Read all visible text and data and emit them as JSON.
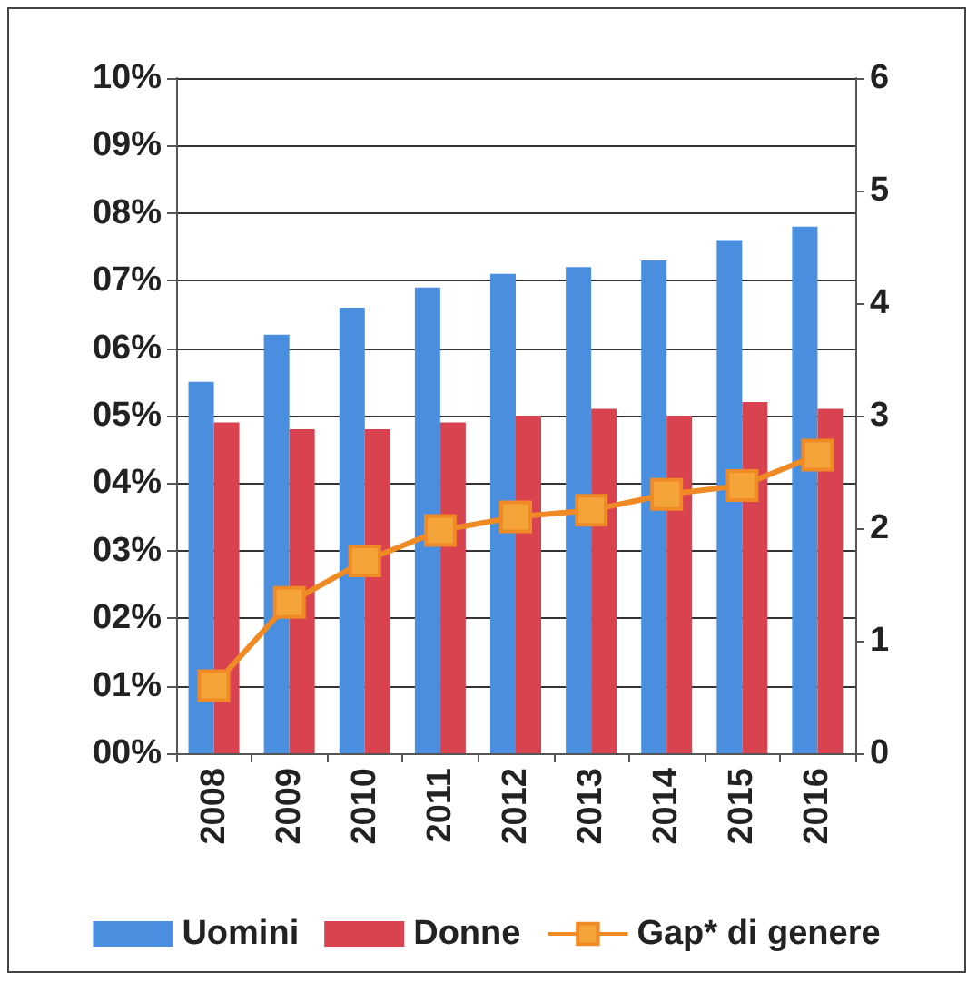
{
  "chart_data": {
    "type": "bar",
    "categories": [
      "2008",
      "2009",
      "2010",
      "2011",
      "2012",
      "2013",
      "2014",
      "2015",
      "2016"
    ],
    "series": [
      {
        "name": "Uomini",
        "color": "#4a8ee0",
        "values": [
          5.5,
          6.2,
          6.6,
          6.9,
          7.1,
          7.2,
          7.3,
          7.6,
          7.8
        ]
      },
      {
        "name": "Donne",
        "color": "#d9434f",
        "values": [
          4.9,
          4.8,
          4.8,
          4.9,
          5.0,
          5.1,
          5.0,
          5.2,
          5.1
        ]
      },
      {
        "name": "Gap* di genere",
        "type": "line",
        "axis": "y2",
        "color": "#f08a24",
        "marker": "square",
        "values": [
          0.6,
          1.34,
          1.71,
          1.98,
          2.1,
          2.16,
          2.3,
          2.38,
          2.65
        ]
      }
    ],
    "ylim": [
      0,
      10
    ],
    "yticks": [
      {
        "value": 0,
        "label": "00%"
      },
      {
        "value": 1,
        "label": "01%"
      },
      {
        "value": 2,
        "label": "02%"
      },
      {
        "value": 3,
        "label": "03%"
      },
      {
        "value": 4,
        "label": "04%"
      },
      {
        "value": 5,
        "label": "05%"
      },
      {
        "value": 6,
        "label": "06%"
      },
      {
        "value": 7,
        "label": "07%"
      },
      {
        "value": 8,
        "label": "08%"
      },
      {
        "value": 9,
        "label": "09%"
      },
      {
        "value": 10,
        "label": "10%"
      }
    ],
    "y2lim": [
      0,
      6
    ],
    "y2ticks": [
      0,
      1,
      2,
      3,
      4,
      5,
      6
    ],
    "grid": "y",
    "legend": "bottom"
  }
}
